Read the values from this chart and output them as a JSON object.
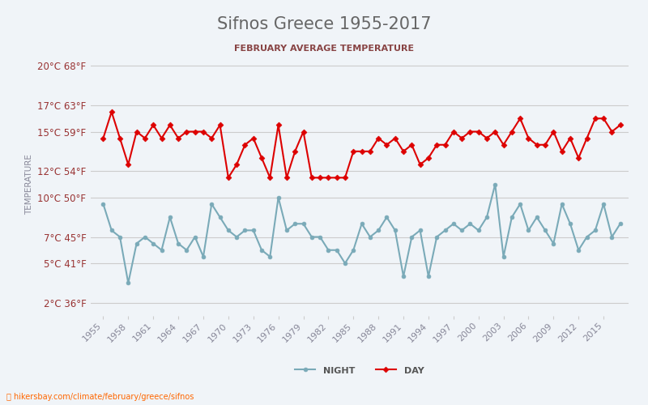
{
  "title": "Sifnos Greece 1955-2017",
  "subtitle": "FEBRUARY AVERAGE TEMPERATURE",
  "ylabel": "TEMPERATURE",
  "url_text": "hikersbay.com/climate/february/greece/sifnos",
  "years": [
    1955,
    1956,
    1957,
    1958,
    1959,
    1960,
    1961,
    1962,
    1963,
    1964,
    1965,
    1966,
    1967,
    1968,
    1969,
    1970,
    1971,
    1972,
    1973,
    1974,
    1975,
    1976,
    1977,
    1978,
    1979,
    1980,
    1981,
    1982,
    1983,
    1984,
    1985,
    1986,
    1987,
    1988,
    1989,
    1990,
    1991,
    1992,
    1993,
    1994,
    1995,
    1996,
    1997,
    1998,
    1999,
    2000,
    2001,
    2002,
    2003,
    2004,
    2005,
    2006,
    2007,
    2008,
    2009,
    2010,
    2011,
    2012,
    2013,
    2014,
    2015,
    2016,
    2017
  ],
  "day_temps": [
    14.5,
    16.5,
    14.5,
    12.5,
    15.0,
    14.5,
    15.5,
    14.5,
    15.5,
    14.5,
    15.0,
    15.0,
    15.0,
    14.5,
    15.5,
    11.5,
    12.5,
    14.0,
    14.5,
    13.0,
    11.5,
    15.5,
    11.5,
    13.5,
    15.0,
    11.5,
    11.5,
    11.5,
    11.5,
    11.5,
    13.5,
    13.5,
    13.5,
    14.5,
    14.0,
    14.5,
    13.5,
    14.0,
    12.5,
    13.0,
    14.0,
    14.0,
    15.0,
    14.5,
    15.0,
    15.0,
    14.5,
    15.0,
    14.0,
    15.0,
    16.0,
    14.5,
    14.0,
    14.0,
    15.0,
    13.5,
    14.5,
    13.0,
    14.5,
    16.0,
    16.0,
    15.0,
    15.5
  ],
  "night_temps": [
    9.5,
    7.5,
    7.0,
    3.5,
    6.5,
    7.0,
    6.5,
    6.0,
    8.5,
    6.5,
    6.0,
    7.0,
    5.5,
    9.5,
    8.5,
    7.5,
    7.0,
    7.5,
    7.5,
    6.0,
    5.5,
    10.0,
    7.5,
    8.0,
    8.0,
    7.0,
    7.0,
    6.0,
    6.0,
    5.0,
    6.0,
    8.0,
    7.0,
    7.5,
    8.5,
    7.5,
    4.0,
    7.0,
    7.5,
    4.0,
    7.0,
    7.5,
    8.0,
    7.5,
    8.0,
    7.5,
    8.5,
    11.0,
    5.5,
    8.5,
    9.5,
    7.5,
    8.5,
    7.5,
    6.5,
    9.5,
    8.0,
    6.0,
    7.0,
    7.5,
    9.5,
    7.0,
    8.0
  ],
  "day_color": "#dd0000",
  "night_color": "#7aaab8",
  "background_color": "#f0f4f8",
  "plot_bg_color": "#f0f4f8",
  "grid_color": "#cccccc",
  "yticks_c": [
    2,
    5,
    7,
    10,
    12,
    15,
    17,
    20
  ],
  "yticks_f": [
    36,
    41,
    45,
    50,
    54,
    59,
    63,
    68
  ],
  "xtick_years": [
    1955,
    1958,
    1961,
    1964,
    1967,
    1970,
    1973,
    1976,
    1979,
    1982,
    1985,
    1988,
    1991,
    1994,
    1997,
    2000,
    2003,
    2006,
    2009,
    2012,
    2015
  ],
  "ylim": [
    1,
    21
  ],
  "title_color": "#666666",
  "subtitle_color": "#884444",
  "tick_label_color": "#993333",
  "xtick_color": "#888899",
  "marker_size": 4,
  "line_width": 1.5
}
